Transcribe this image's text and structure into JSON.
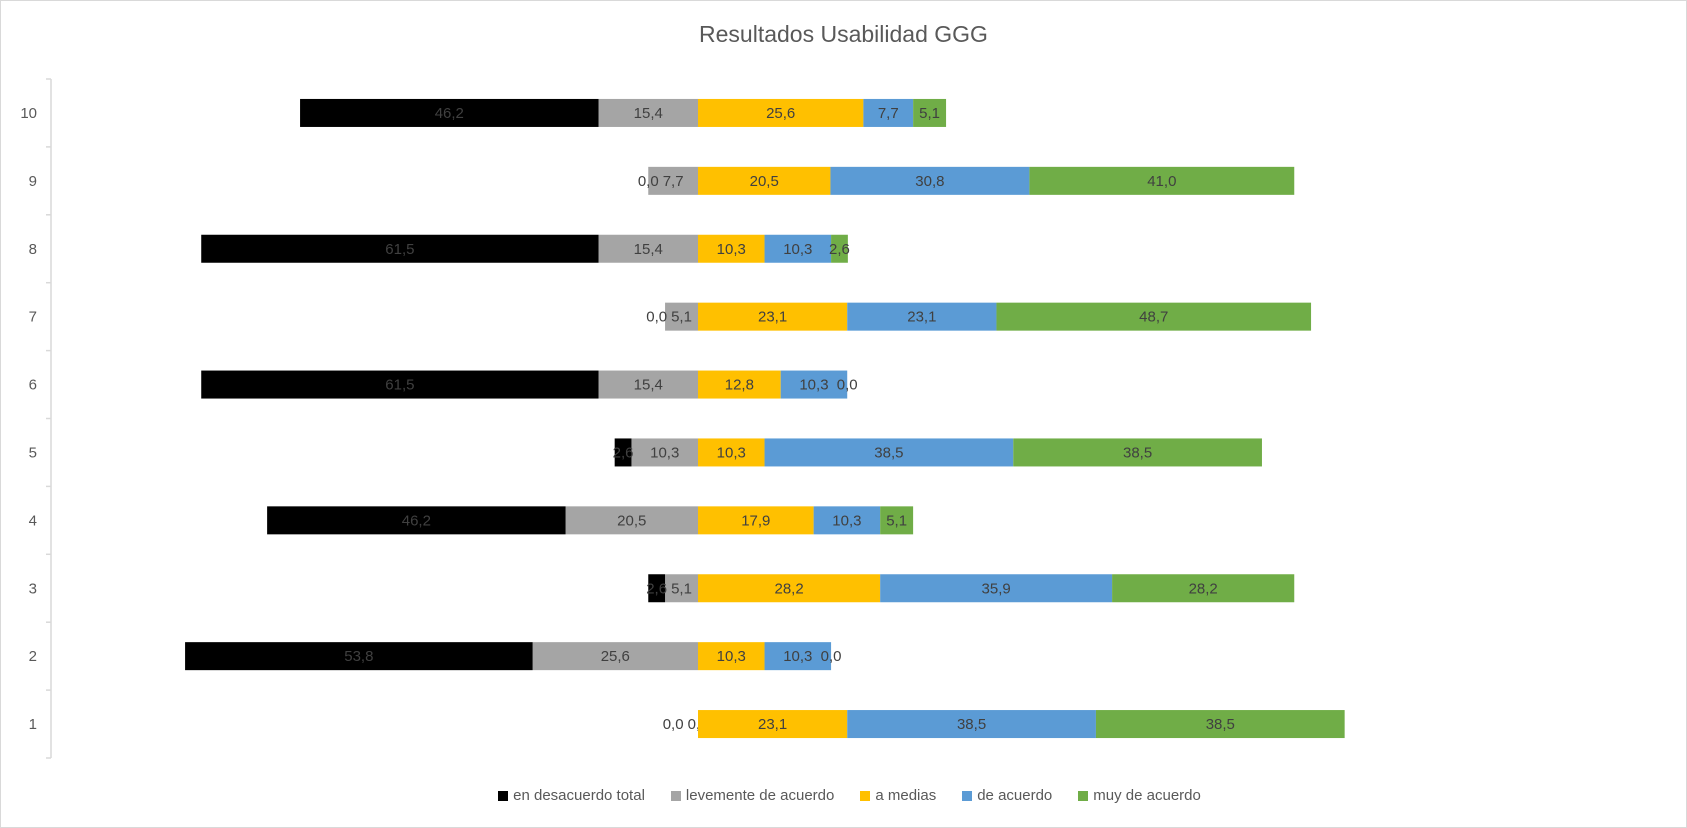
{
  "chart_data": {
    "type": "bar",
    "orientation": "horizontal",
    "stacking": "diverging",
    "title": "Resultados Usabilidad GGG",
    "categories": [
      "1",
      "2",
      "3",
      "4",
      "5",
      "6",
      "7",
      "8",
      "9",
      "10"
    ],
    "series": [
      {
        "name": "en desacuerdo total",
        "color": "#000000",
        "side": "negative",
        "values": [
          0.0,
          53.8,
          2.6,
          46.2,
          2.6,
          61.5,
          0.0,
          61.5,
          0.0,
          46.2
        ]
      },
      {
        "name": "levemente de acuerdo",
        "color": "#A5A5A5",
        "side": "negative",
        "values": [
          0.0,
          25.6,
          5.1,
          20.5,
          10.3,
          15.4,
          5.1,
          15.4,
          7.7,
          15.4
        ]
      },
      {
        "name": "a medias",
        "color": "#FFC000",
        "side": "positive",
        "values": [
          23.1,
          10.3,
          28.2,
          17.9,
          10.3,
          12.8,
          23.1,
          10.3,
          20.5,
          25.6
        ]
      },
      {
        "name": "de acuerdo",
        "color": "#5B9BD5",
        "side": "positive",
        "values": [
          38.5,
          10.3,
          35.9,
          10.3,
          38.5,
          10.3,
          23.1,
          10.3,
          30.8,
          7.7
        ]
      },
      {
        "name": "muy de acuerdo",
        "color": "#70AD47",
        "side": "positive",
        "values": [
          38.5,
          0.0,
          28.2,
          5.1,
          38.5,
          0.0,
          48.7,
          2.6,
          41.0,
          5.1
        ]
      }
    ],
    "data_labels": true,
    "grid": false,
    "legend_position": "bottom"
  }
}
